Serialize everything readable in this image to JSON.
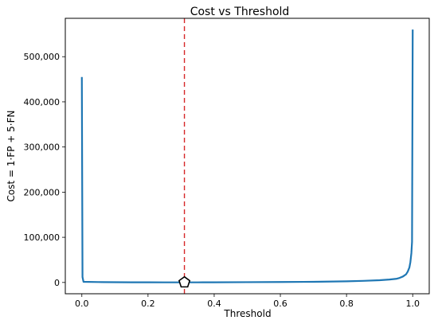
{
  "chart_data": {
    "type": "line",
    "title": "Cost vs Threshold",
    "xlabel": "Threshold",
    "ylabel": "Cost = 1·FP + 5·FN",
    "xlim": [
      -0.05,
      1.05
    ],
    "ylim": [
      -25000,
      585000
    ],
    "xticks": [
      0.0,
      0.2,
      0.4,
      0.6,
      0.8,
      1.0
    ],
    "xtick_labels": [
      "0.0",
      "0.2",
      "0.4",
      "0.6",
      "0.8",
      "1.0"
    ],
    "yticks": [
      0,
      100000,
      200000,
      300000,
      400000,
      500000
    ],
    "ytick_labels": [
      "0",
      "100,000",
      "200,000",
      "300,000",
      "400,000",
      "500,000"
    ],
    "grid": false,
    "series": [
      {
        "color": "#1f77b4",
        "x": [
          0.0,
          0.002,
          0.005,
          0.05,
          0.1,
          0.15,
          0.2,
          0.25,
          0.31,
          0.35,
          0.4,
          0.5,
          0.6,
          0.7,
          0.8,
          0.85,
          0.9,
          0.93,
          0.95,
          0.96,
          0.97,
          0.98,
          0.985,
          0.99,
          0.993,
          0.996,
          0.998,
          1.0
        ],
        "y": [
          455000,
          12000,
          1500,
          900,
          600,
          400,
          300,
          250,
          200,
          250,
          400,
          700,
          1000,
          1500,
          2500,
          3500,
          5000,
          6500,
          8000,
          10000,
          13000,
          18000,
          24000,
          33000,
          45000,
          65000,
          90000,
          560000
        ]
      }
    ],
    "vline": {
      "x": 0.31,
      "color": "#d62728",
      "style": "dashed"
    },
    "marker": {
      "x": 0.31,
      "y": 200,
      "shape": "pentagon"
    }
  }
}
